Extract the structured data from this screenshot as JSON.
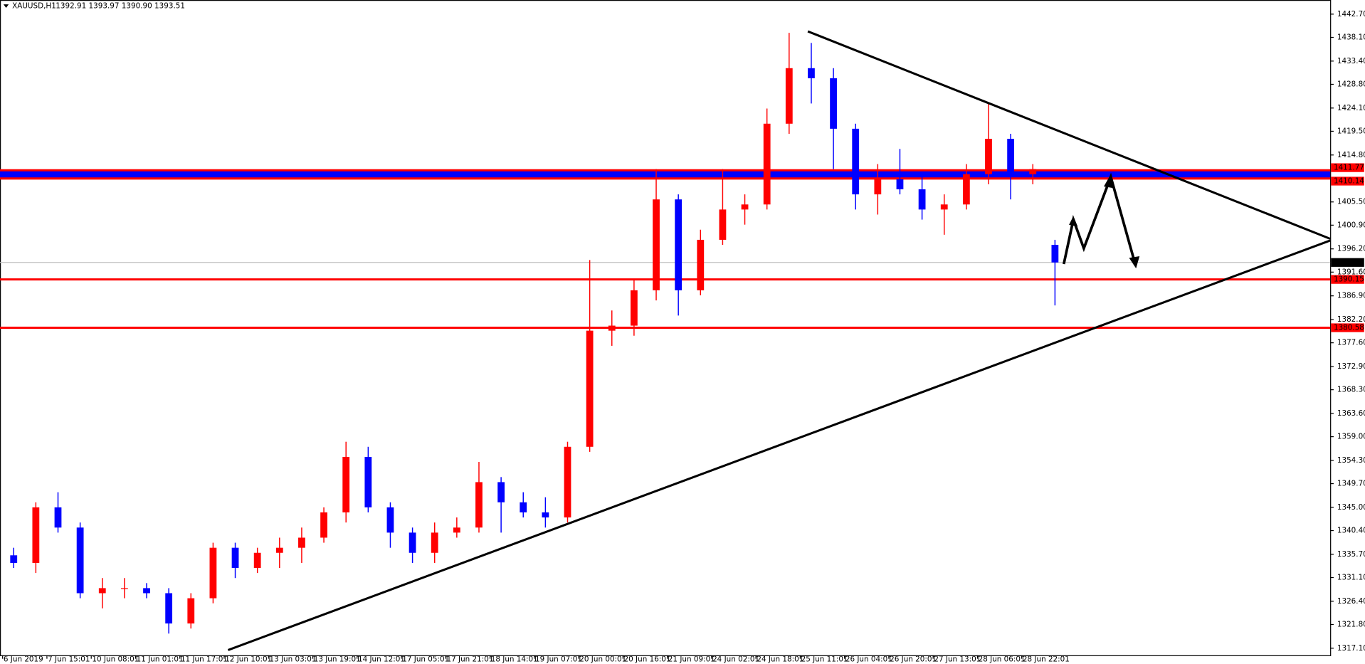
{
  "header": {
    "symbol": "XAUUSD,H1",
    "ohlc": "1392.91 1393.97 1390.90 1393.51"
  },
  "chart_data": {
    "type": "candlestick",
    "up_color": "#ff0000",
    "down_color": "#0000ff",
    "open": [
      1335.5,
      1334,
      1345,
      1341,
      1328,
      1329,
      1329,
      1328,
      1322,
      1327,
      1337,
      1333,
      1336,
      1337,
      1339,
      1344,
      1355,
      1345,
      1340,
      1336,
      1340,
      1341,
      1350,
      1346,
      1344,
      1343,
      1357,
      1380,
      1381,
      1388,
      1406,
      1388,
      1398,
      1404,
      1405,
      1421,
      1432,
      1430,
      1420,
      1407,
      1410,
      1408,
      1404,
      1405,
      1411,
      1418,
      1411,
      1397
    ],
    "high": [
      1337,
      1346,
      1348,
      1342,
      1331,
      1331,
      1330,
      1329,
      1328,
      1338,
      1338,
      1337,
      1339,
      1341,
      1345,
      1358,
      1357,
      1346,
      1341,
      1342,
      1343,
      1354,
      1351,
      1348,
      1347,
      1358,
      1394,
      1384,
      1390,
      1412,
      1407,
      1400,
      1412,
      1407,
      1424,
      1439,
      1437,
      1432,
      1421,
      1413,
      1416,
      1411,
      1407,
      1413,
      1425,
      1419,
      1413,
      1398
    ],
    "low": [
      1333,
      1332,
      1340,
      1327,
      1325,
      1327,
      1327,
      1320,
      1321,
      1326,
      1331,
      1332,
      1333,
      1334,
      1338,
      1342,
      1344,
      1337,
      1334,
      1334,
      1339,
      1340,
      1340,
      1343,
      1341,
      1342,
      1356,
      1377,
      1379,
      1386,
      1383,
      1387,
      1397,
      1401,
      1404,
      1419,
      1425,
      1412,
      1404,
      1403,
      1407,
      1402,
      1399,
      1404,
      1409,
      1406,
      1409,
      1385
    ],
    "close": [
      1334,
      1345,
      1341,
      1328,
      1329,
      1329,
      1328,
      1322,
      1327,
      1337,
      1333,
      1336,
      1337,
      1339,
      1344,
      1355,
      1345,
      1340,
      1336,
      1340,
      1341,
      1350,
      1346,
      1344,
      1343,
      1357,
      1380,
      1381,
      1388,
      1406,
      1388,
      1398,
      1404,
      1405,
      1421,
      1432,
      1430,
      1420,
      1407,
      1410,
      1408,
      1404,
      1405,
      1411,
      1418,
      1411,
      1412,
      1393.51
    ],
    "ylim": [
      1315.7,
      1445.5
    ],
    "yticks": [
      {
        "value": 1442.7,
        "label": "1442.70"
      },
      {
        "value": 1438.1,
        "label": "1438.10"
      },
      {
        "value": 1433.4,
        "label": "1433.40"
      },
      {
        "value": 1428.8,
        "label": "1428.80"
      },
      {
        "value": 1424.1,
        "label": "1424.10"
      },
      {
        "value": 1419.5,
        "label": "1419.50"
      },
      {
        "value": 1414.8,
        "label": "1414.80"
      },
      {
        "value": 1405.5,
        "label": "1405.50"
      },
      {
        "value": 1400.9,
        "label": "1400.90"
      },
      {
        "value": 1396.2,
        "label": "1396.20"
      },
      {
        "value": 1391.6,
        "label": "1391.60"
      },
      {
        "value": 1386.9,
        "label": "1386.90"
      },
      {
        "value": 1382.2,
        "label": "1382.20"
      },
      {
        "value": 1377.6,
        "label": "1377.60"
      },
      {
        "value": 1372.9,
        "label": "1372.90"
      },
      {
        "value": 1368.3,
        "label": "1368.30"
      },
      {
        "value": 1363.6,
        "label": "1363.60"
      },
      {
        "value": 1359,
        "label": "1359.00"
      },
      {
        "value": 1354.3,
        "label": "1354.30"
      },
      {
        "value": 1349.7,
        "label": "1349.70"
      },
      {
        "value": 1345,
        "label": "1345.00"
      },
      {
        "value": 1340.4,
        "label": "1340.40"
      },
      {
        "value": 1335.7,
        "label": "1335.70"
      },
      {
        "value": 1331.1,
        "label": "1331.10"
      },
      {
        "value": 1326.4,
        "label": "1326.40"
      },
      {
        "value": 1321.8,
        "label": "1321.80"
      },
      {
        "value": 1317.1,
        "label": "1317.10"
      }
    ],
    "xticks": [
      {
        "value": 0,
        "label": "6 Jun 2019"
      },
      {
        "value": 2,
        "label": "7 Jun 15:01"
      },
      {
        "value": 4,
        "label": "10 Jun 08:01"
      },
      {
        "value": 6,
        "label": "11 Jun 01:01"
      },
      {
        "value": 8,
        "label": "11 Jun 17:01"
      },
      {
        "value": 10,
        "label": "12 Jun 10:01"
      },
      {
        "value": 12,
        "label": "13 Jun 03:01"
      },
      {
        "value": 14,
        "label": "13 Jun 19:01"
      },
      {
        "value": 16,
        "label": "14 Jun 12:01"
      },
      {
        "value": 18,
        "label": "17 Jun 05:01"
      },
      {
        "value": 20,
        "label": "17 Jun 21:01"
      },
      {
        "value": 22,
        "label": "18 Jun 14:01"
      },
      {
        "value": 24,
        "label": "19 Jun 07:01"
      },
      {
        "value": 26,
        "label": "20 Jun 00:01"
      },
      {
        "value": 28,
        "label": "20 Jun 16:01"
      },
      {
        "value": 30,
        "label": "21 Jun 09:01"
      },
      {
        "value": 32,
        "label": "24 Jun 02:01"
      },
      {
        "value": 34,
        "label": "24 Jun 18:01"
      },
      {
        "value": 36,
        "label": "25 Jun 11:01"
      },
      {
        "value": 38,
        "label": "26 Jun 04:01"
      },
      {
        "value": 40,
        "label": "26 Jun 20:01"
      },
      {
        "value": 42,
        "label": "27 Jun 13:01"
      },
      {
        "value": 44,
        "label": "28 Jun 06:01"
      },
      {
        "value": 46,
        "label": "28 Jun 22:01"
      }
    ],
    "levels": [
      {
        "value": 1411.77,
        "color": "#ff0000"
      },
      {
        "value": 1410.14,
        "color": "#ff0000"
      },
      {
        "value": 1393.51,
        "color": "#000000"
      },
      {
        "value": 1390.15,
        "color": "#ff0000"
      },
      {
        "value": 1380.58,
        "color": "#ff0000"
      }
    ]
  }
}
